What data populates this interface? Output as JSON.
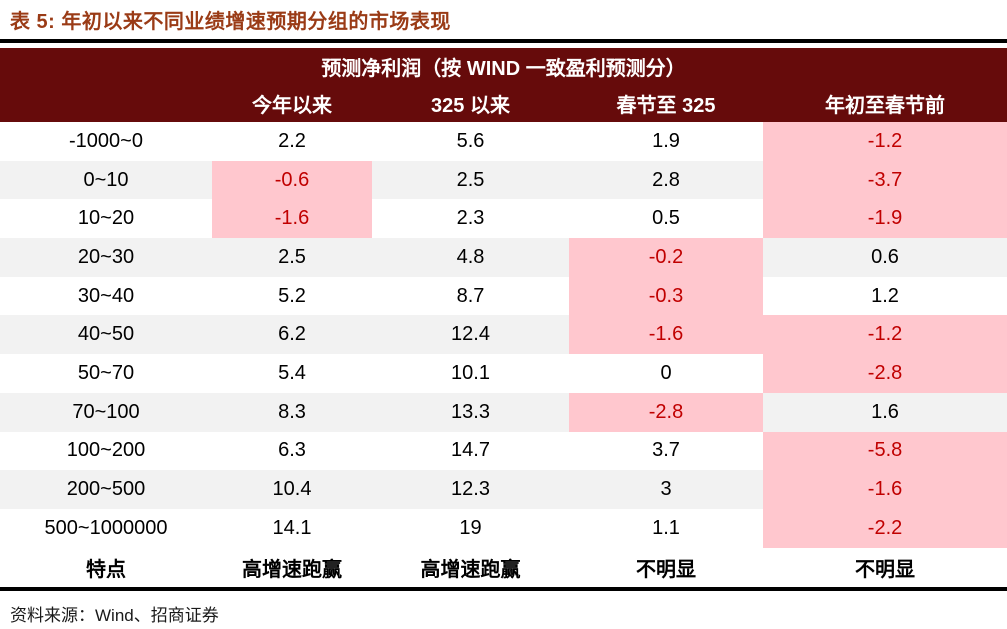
{
  "page_title": "表 5: 年初以来不同业绩增速预期分组的市场表现",
  "source_note": "资料来源：Wind、招商证券",
  "colors": {
    "title": "#9a3b16",
    "header_bg": "#660b0b",
    "header_text": "#ffffff",
    "stripe": "#f2f2f2",
    "highlight_bg": "#ffc7ce",
    "highlight_text": "#c00000",
    "rule": "#000000"
  },
  "chart_data": {
    "type": "table",
    "title": "表 5: 年初以来不同业绩增速预期分组的市场表现",
    "group_header": "预测净利润（按 WIND 一致盈利预测分）",
    "row_header_label": "",
    "columns": [
      "今年以来",
      "325 以来",
      "春节至 325",
      "年初至春节前"
    ],
    "rows": [
      {
        "label": "-1000~0",
        "values": [
          "2.2",
          "5.6",
          "1.9",
          "-1.2"
        ],
        "highlight": [
          false,
          false,
          false,
          true
        ]
      },
      {
        "label": "0~10",
        "values": [
          "-0.6",
          "2.5",
          "2.8",
          "-3.7"
        ],
        "highlight": [
          true,
          false,
          false,
          true
        ]
      },
      {
        "label": "10~20",
        "values": [
          "-1.6",
          "2.3",
          "0.5",
          "-1.9"
        ],
        "highlight": [
          true,
          false,
          false,
          true
        ]
      },
      {
        "label": "20~30",
        "values": [
          "2.5",
          "4.8",
          "-0.2",
          "0.6"
        ],
        "highlight": [
          false,
          false,
          true,
          false
        ]
      },
      {
        "label": "30~40",
        "values": [
          "5.2",
          "8.7",
          "-0.3",
          "1.2"
        ],
        "highlight": [
          false,
          false,
          true,
          false
        ]
      },
      {
        "label": "40~50",
        "values": [
          "6.2",
          "12.4",
          "-1.6",
          "-1.2"
        ],
        "highlight": [
          false,
          false,
          true,
          true
        ]
      },
      {
        "label": "50~70",
        "values": [
          "5.4",
          "10.1",
          "0",
          "-2.8"
        ],
        "highlight": [
          false,
          false,
          false,
          true
        ]
      },
      {
        "label": "70~100",
        "values": [
          "8.3",
          "13.3",
          "-2.8",
          "1.6"
        ],
        "highlight": [
          false,
          false,
          true,
          false
        ]
      },
      {
        "label": "100~200",
        "values": [
          "6.3",
          "14.7",
          "3.7",
          "-5.8"
        ],
        "highlight": [
          false,
          false,
          false,
          true
        ]
      },
      {
        "label": "200~500",
        "values": [
          "10.4",
          "12.3",
          "3",
          "-1.6"
        ],
        "highlight": [
          false,
          false,
          false,
          true
        ]
      },
      {
        "label": "500~1000000",
        "values": [
          "14.1",
          "19",
          "1.1",
          "-2.2"
        ],
        "highlight": [
          false,
          false,
          false,
          true
        ]
      }
    ],
    "summary_row": {
      "label": "特点",
      "values": [
        "高增速跑赢",
        "高增速跑赢",
        "不明显",
        "不明显"
      ]
    }
  }
}
